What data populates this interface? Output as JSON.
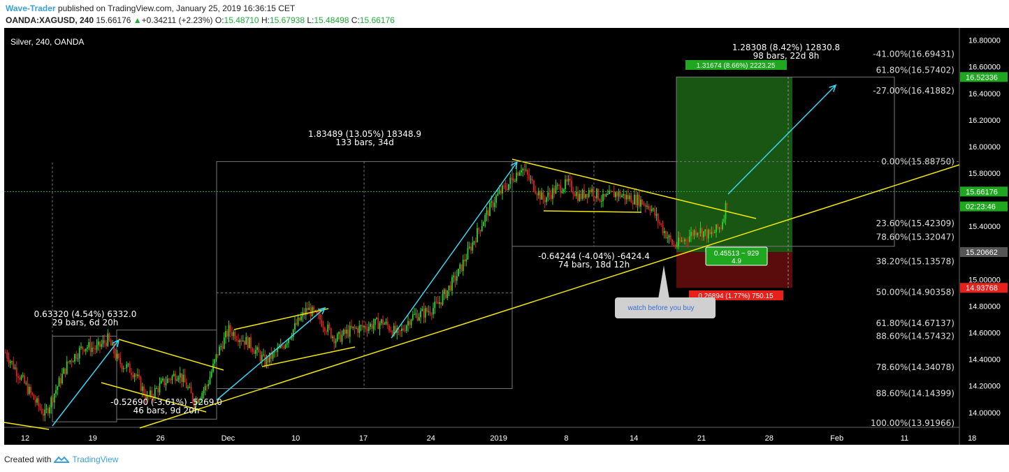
{
  "header": {
    "author": "Wave-Trader",
    "published_text": " published on TradingView.com, January 25, 2019 16:36:15 CET",
    "symbol": "OANDA:XAGUSD, 240",
    "last": "15.66176",
    "change": "+0.34211 (+2.23%)",
    "o_label": "O:",
    "open": "15.48710",
    "h_label": "H:",
    "high": "15.67938",
    "l_label": "L:",
    "low": "15.48498",
    "c_label": "C:",
    "close": "15.66176"
  },
  "footer": {
    "created_with": "Created with",
    "brand": "TradingView"
  },
  "chart_data": {
    "type": "candlestick",
    "title": "Silver, 240, OANDA",
    "ylim": [
      13.92,
      16.84
    ],
    "y_ticks": [
      "16.80000",
      "16.60000",
      "16.40000",
      "16.20000",
      "16.00000",
      "15.80000",
      "15.40000",
      "15.00000",
      "14.80000",
      "14.60000",
      "14.40000",
      "14.20000",
      "14.00000"
    ],
    "y_tick_values": [
      16.8,
      16.6,
      16.4,
      16.2,
      16.0,
      15.8,
      15.4,
      15.0,
      14.8,
      14.6,
      14.4,
      14.2,
      14.0
    ],
    "x_ticks": [
      "12",
      "19",
      "26",
      "Dec",
      "10",
      "17",
      "24",
      "2019",
      "8",
      "14",
      "21",
      "28",
      "Feb",
      "11",
      "18"
    ],
    "price_badges": [
      {
        "label": "16.52336",
        "value": 16.52336,
        "color": "#1fa81f"
      },
      {
        "label": "15.66176",
        "value": 15.66176,
        "color": "#1fa81f"
      },
      {
        "label": "02:23:46",
        "value": 15.55,
        "color": "#1fa81f"
      },
      {
        "label": "15.20662",
        "value": 15.20662,
        "color": "#555555"
      },
      {
        "label": "14.93768",
        "value": 14.93768,
        "color": "#e8201c"
      }
    ],
    "fib_levels": [
      {
        "label": "-41.00%(16.69431)",
        "value": 16.69431
      },
      {
        "label": "61.80%(16.57402)",
        "value": 16.57402
      },
      {
        "label": "-27.00%(16.41882)",
        "value": 16.41882
      },
      {
        "label": "0.00%(15.88750)",
        "value": 15.8875
      },
      {
        "label": "23.60%(15.42309)",
        "value": 15.42309
      },
      {
        "label": "78.60%(15.32047)",
        "value": 15.32047
      },
      {
        "label": "38.20%(15.13578)",
        "value": 15.13578
      },
      {
        "label": "50.00%(14.90358)",
        "value": 14.90358
      },
      {
        "label": "61.80%(14.67137)",
        "value": 14.67137
      },
      {
        "label": "88.60%(14.57432)",
        "value": 14.57432
      },
      {
        "label": "78.60%(14.34078)",
        "value": 14.34078
      },
      {
        "label": "88.60%(14.14399)",
        "value": 14.14399
      },
      {
        "label": "100.00%(13.91966)",
        "value": 13.91966
      }
    ],
    "annotations": [
      {
        "l1": "1.28308 (8.42%) 12830.8",
        "l2": "98 bars, 22d 8h"
      },
      {
        "l1": "1.83489 (13.05%) 18348.9",
        "l2": "133 bars, 34d"
      },
      {
        "l1": "-0.64244 (-4.04%) -6424.4",
        "l2": "74 bars, 18d 12h"
      },
      {
        "l1": "0.63320 (4.54%) 6332.0",
        "l2": "29 bars, 6d 20h"
      },
      {
        "l1": "-0.52690 (-3.61%) -5269.0",
        "l2": "46 bars, 9d 20h"
      }
    ],
    "target_box": "1.31674 (8.66%) 2223.25",
    "stop_box": "0.26894 (1.77%) 750.15",
    "rr_box": {
      "l1": "0.45513 ~ 929",
      "l2": "4.9"
    },
    "callout": "watch before you buy",
    "path": [
      [
        0,
        14.45
      ],
      [
        18,
        14.1
      ],
      [
        25,
        13.98
      ],
      [
        30,
        14.12
      ],
      [
        40,
        14.38
      ],
      [
        50,
        14.5
      ],
      [
        58,
        14.48
      ],
      [
        65,
        14.55
      ],
      [
        72,
        14.38
      ],
      [
        82,
        14.3
      ],
      [
        90,
        14.1
      ],
      [
        100,
        14.22
      ],
      [
        110,
        14.3
      ],
      [
        115,
        14.2
      ],
      [
        120,
        14.08
      ],
      [
        128,
        14.2
      ],
      [
        135,
        14.45
      ],
      [
        142,
        14.62
      ],
      [
        155,
        14.52
      ],
      [
        165,
        14.38
      ],
      [
        175,
        14.48
      ],
      [
        185,
        14.66
      ],
      [
        192,
        14.78
      ],
      [
        200,
        14.7
      ],
      [
        210,
        14.55
      ],
      [
        220,
        14.62
      ],
      [
        230,
        14.65
      ],
      [
        240,
        14.68
      ],
      [
        250,
        14.58
      ],
      [
        258,
        14.72
      ],
      [
        266,
        14.75
      ],
      [
        274,
        14.8
      ],
      [
        280,
        14.9
      ],
      [
        288,
        15.05
      ],
      [
        296,
        15.25
      ],
      [
        304,
        15.45
      ],
      [
        312,
        15.62
      ],
      [
        320,
        15.72
      ],
      [
        328,
        15.85
      ],
      [
        335,
        15.72
      ],
      [
        342,
        15.6
      ],
      [
        350,
        15.68
      ],
      [
        358,
        15.72
      ],
      [
        365,
        15.62
      ],
      [
        372,
        15.68
      ],
      [
        380,
        15.6
      ],
      [
        388,
        15.65
      ],
      [
        395,
        15.62
      ],
      [
        402,
        15.6
      ],
      [
        410,
        15.55
      ],
      [
        418,
        15.38
      ],
      [
        425,
        15.25
      ],
      [
        432,
        15.3
      ],
      [
        440,
        15.38
      ],
      [
        448,
        15.33
      ],
      [
        455,
        15.4
      ],
      [
        460,
        15.65
      ]
    ]
  }
}
